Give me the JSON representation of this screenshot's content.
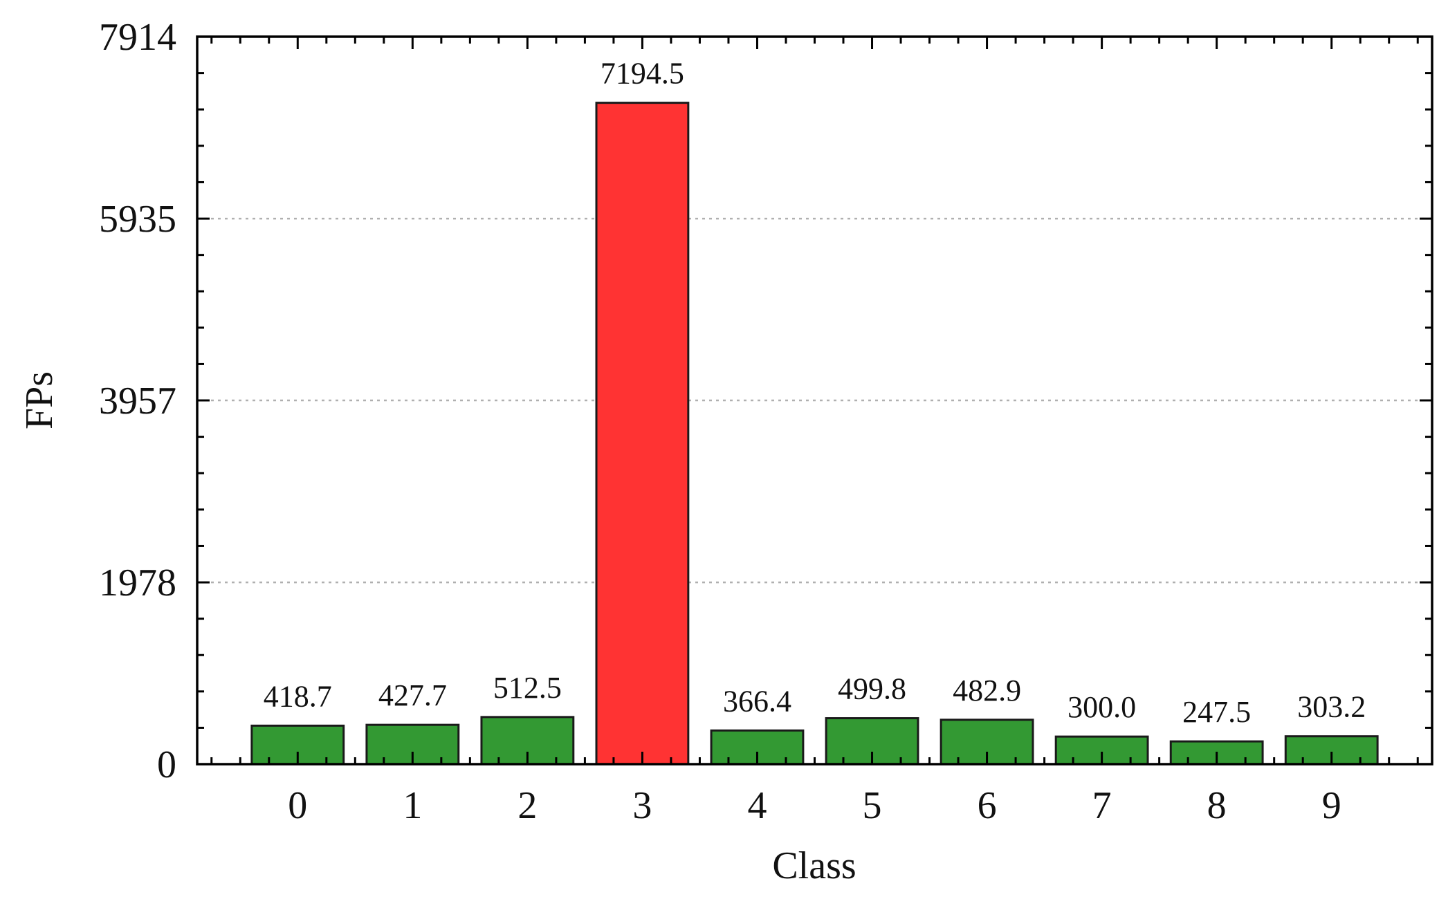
{
  "chart_data": {
    "type": "bar",
    "xlabel": "Class",
    "ylabel": "FPs",
    "categories": [
      "0",
      "1",
      "2",
      "3",
      "4",
      "5",
      "6",
      "7",
      "8",
      "9"
    ],
    "values": [
      418.7,
      427.7,
      512.5,
      7194.5,
      366.4,
      499.8,
      482.9,
      300.0,
      247.5,
      303.2
    ],
    "data_labels": [
      "418.7",
      "427.7",
      "512.5",
      "7194.5",
      "366.4",
      "499.8",
      "482.9",
      "300.0",
      "247.5",
      "303.2"
    ],
    "bar_colors": [
      "#339933",
      "#339933",
      "#339933",
      "#ff3333",
      "#339933",
      "#339933",
      "#339933",
      "#339933",
      "#339933",
      "#339933"
    ],
    "ylim": [
      0,
      7914
    ],
    "yticks": [
      0,
      1978,
      3957,
      5935,
      7914
    ],
    "ytick_labels": [
      "0",
      "1978",
      "3957",
      "5935",
      "7914"
    ],
    "grid": "horizontal dotted at inner y ticks",
    "legend": "none"
  }
}
